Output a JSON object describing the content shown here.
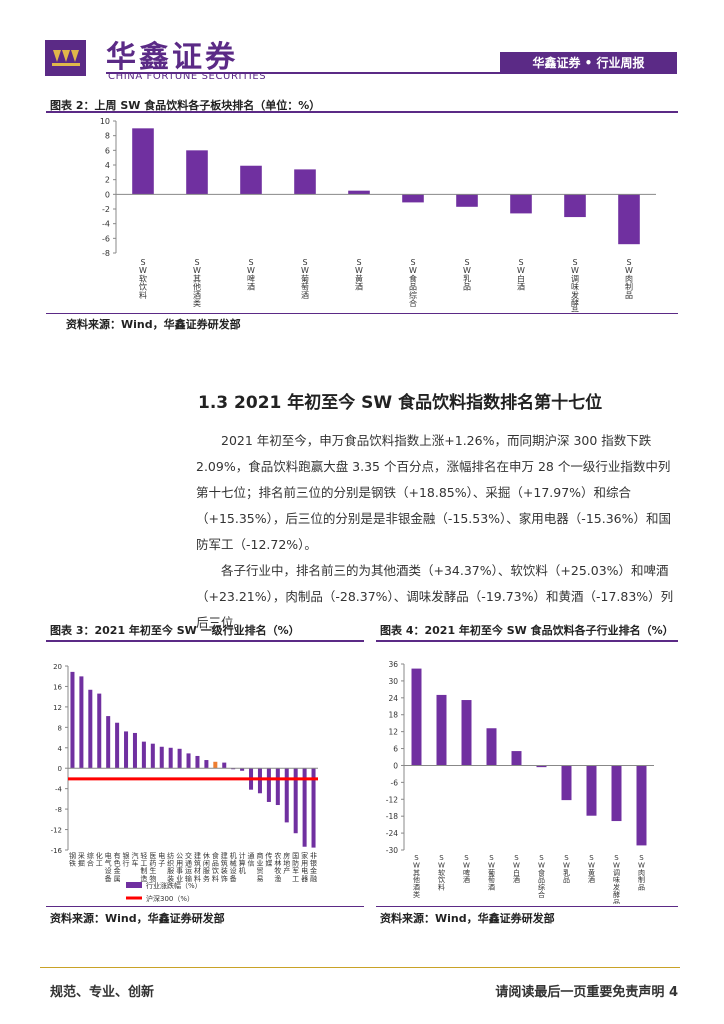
{
  "header": {
    "brand_cn": "华鑫证券",
    "brand_en": "CHINA FORTUNE SECURITIES",
    "report_tag": "华鑫证券 • 行业周报"
  },
  "fig2": {
    "title": "图表 2：上周 SW 食品饮料各子板块排名（单位：%）",
    "source": "资料来源：Wind，华鑫证券研发部"
  },
  "section": {
    "title": "1.3 2021 年初至今 SW 食品饮料指数排名第十七位",
    "para1": "2021 年初至今，申万食品饮料指数上涨+1.26%，而同期沪深 300 指数下跌 2.09%，食品饮料跑赢大盘 3.35 个百分点，涨幅排名在申万 28 个一级行业指数中列第十七位；排名前三位的分别是钢铁（+18.85%）、采掘（+17.97%）和综合（+15.35%），后三位的分别是是非银金融（-15.53%）、家用电器（-15.36%）和国防军工（-12.72%）。",
    "para2": "各子行业中，排名前三的为其他酒类（+34.37%）、软饮料（+25.03%）和啤酒（+23.21%），肉制品（-28.37%）、调味发酵品（-19.73%）和黄酒（-17.83%）列后三位。"
  },
  "fig3": {
    "title": "图表 3：2021 年初至今 SW 一级行业排名（%）",
    "source": "资料来源：Wind，华鑫证券研发部"
  },
  "fig4": {
    "title": "图表 4：2021 年初至今 SW 食品饮料各子行业排名（%）",
    "source": "资料来源：Wind，华鑫证券研发部"
  },
  "footer": {
    "left": "规范、专业、创新",
    "right": "请阅读最后一页重要免责声明 4"
  },
  "colors": {
    "brand": "#5b2a86",
    "bar": "#7030a0",
    "highlight": "#ed7d31",
    "line": "#ff0000"
  },
  "chart_data": [
    {
      "id": "fig2",
      "type": "bar",
      "categories": [
        "SW软饮料",
        "SW其他酒类",
        "SW啤酒",
        "SW葡萄酒",
        "SW黄酒",
        "SW食品综合",
        "SW乳品",
        "SW白酒",
        "SW调味发酵品",
        "SW肉制品"
      ],
      "values": [
        9.0,
        6.0,
        3.9,
        3.4,
        0.5,
        -1.1,
        -1.7,
        -2.6,
        -3.1,
        -6.8
      ],
      "ylim": [
        -8,
        10
      ],
      "yticks": [
        -8,
        -6,
        -4,
        -2,
        0,
        2,
        4,
        6,
        8,
        10
      ],
      "title": "",
      "xlabel": "",
      "ylabel": ""
    },
    {
      "id": "fig3",
      "type": "bar",
      "categories": [
        "钢铁",
        "采掘",
        "综合",
        "化工",
        "电气设备",
        "有色金属",
        "银行",
        "汽车",
        "轻工制造",
        "医药生物",
        "电子",
        "纺织服装",
        "公用事业",
        "交通运输",
        "建筑材料",
        "休闲服务",
        "食品饮料",
        "建筑装饰",
        "机械设备",
        "计算机",
        "通信",
        "商业贸易",
        "传媒",
        "农林牧渔",
        "房地产",
        "国防军工",
        "家用电器",
        "非银金融"
      ],
      "values": [
        18.85,
        17.97,
        15.35,
        14.6,
        10.2,
        8.9,
        7.2,
        6.9,
        5.2,
        4.8,
        4.2,
        4.0,
        3.8,
        2.9,
        2.4,
        1.6,
        1.26,
        1.1,
        -0.2,
        -0.5,
        -4.2,
        -4.9,
        -6.6,
        -7.2,
        -10.6,
        -12.72,
        -15.36,
        -15.53
      ],
      "highlight": "食品饮料",
      "series": [
        {
          "name": "行业涨跌幅（%）",
          "type": "bar"
        },
        {
          "name": "沪深300（%）",
          "type": "line",
          "value": -2.09
        }
      ],
      "ylim": [
        -16,
        20
      ],
      "yticks": [
        -16,
        -12,
        -8,
        -4,
        0,
        4,
        8,
        12,
        16,
        20
      ]
    },
    {
      "id": "fig4",
      "type": "bar",
      "categories": [
        "SW其他酒类",
        "SW软饮料",
        "SW啤酒",
        "SW葡萄酒",
        "SW白酒",
        "SW食品综合",
        "SW乳品",
        "SW黄酒",
        "SW调味发酵品",
        "SW肉制品"
      ],
      "values": [
        34.37,
        25.03,
        23.21,
        13.2,
        5.1,
        -0.6,
        -12.3,
        -17.83,
        -19.73,
        -28.37
      ],
      "ylim": [
        -30,
        36
      ],
      "yticks": [
        -30,
        -24,
        -18,
        -12,
        -6,
        0,
        6,
        12,
        18,
        24,
        30,
        36
      ]
    }
  ]
}
